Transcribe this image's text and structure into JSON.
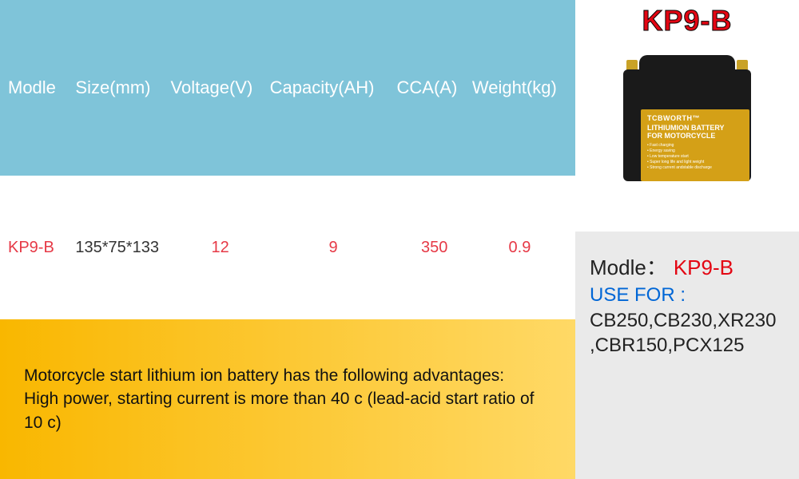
{
  "table": {
    "headers": {
      "model": "Modle",
      "size": "Size(mm)",
      "voltage": "Voltage(V)",
      "capacity": "Capacity(AH)",
      "cca": "CCA(A)",
      "weight": "Weight(kg)"
    },
    "row": {
      "model": "KP9-B",
      "size": "135*75*133",
      "voltage": "12",
      "capacity": "9",
      "cca": "350",
      "weight": "0.9"
    },
    "header_bg": "#7fc4d9",
    "header_text_color": "#ffffff",
    "data_text_color": "#e63946"
  },
  "advantage": {
    "line1": "Motorcycle start lithium ion battery has the following advantages:",
    "line2": "High power, starting current is more than 40 c (lead-acid start ratio of 10 c)",
    "bg_gradient_from": "#f9b700",
    "bg_gradient_to": "#ffd966",
    "text_color": "#111111"
  },
  "product": {
    "title": "KP9-B",
    "title_color": "#e30613",
    "battery": {
      "brand": "TCBWORTH™",
      "line1": "LITHIUMION BATTERY",
      "line2": "FOR MOTORCYCLE",
      "features": [
        "Fast charging",
        "Energy saving",
        "Low temperature start",
        "Super long life and light weight",
        "Strong current andstable discharge"
      ],
      "body_color": "#1a1a1a",
      "label_color": "#d4a017",
      "terminal_color": "#c9a227"
    },
    "detail": {
      "model_label": "Modle：",
      "model_value": "KP9-B",
      "usefor_label": "USE FOR :",
      "usefor_value": "CB250,CB230,XR230 ,CBR150,PCX125",
      "model_value_color": "#e30613",
      "usefor_label_color": "#0066d6",
      "bg_color": "#eaeaea"
    }
  }
}
